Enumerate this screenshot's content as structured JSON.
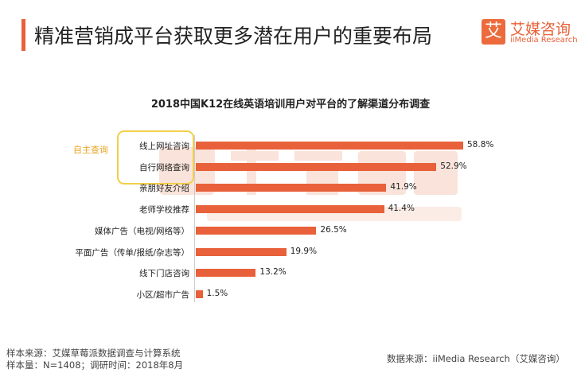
{
  "header": {
    "title": "精准营销成平台获取更多潜在用户的重要布局",
    "logo_mark": "艾",
    "logo_cn": "艾媒咨询",
    "logo_en": "iiMedia Research"
  },
  "watermark": {
    "cn": "艾媒咨询",
    "en": "iiMedia Research"
  },
  "chart_data": {
    "type": "bar",
    "orientation": "horizontal",
    "title": "2018中国K12在线英语培训用户对平台的了解渠道分布调查",
    "group_label": "自主查询",
    "categories": [
      "线上网址咨询",
      "自行网络查询",
      "亲朋好友介绍",
      "老师学校推荐",
      "媒体广告（电视/网络等）",
      "平面广告（传单/报纸/杂志等）",
      "线下门店咨询",
      "小区/超市广告"
    ],
    "values": [
      58.8,
      52.9,
      41.9,
      41.4,
      26.5,
      19.9,
      13.2,
      1.5
    ],
    "labels": [
      "58.8%",
      "52.9%",
      "41.9%",
      "41.4%",
      "26.5%",
      "19.9%",
      "13.2%",
      "1.5%"
    ],
    "unit": "%",
    "color": "#e8613a"
  },
  "footer": {
    "source1": "样本来源：艾媒草莓派数据调查与计算系统",
    "source2": "样本量：N=1408；调研时间：2018年8月",
    "data_source": "数据来源：iiMedia Research（艾媒咨询）"
  }
}
